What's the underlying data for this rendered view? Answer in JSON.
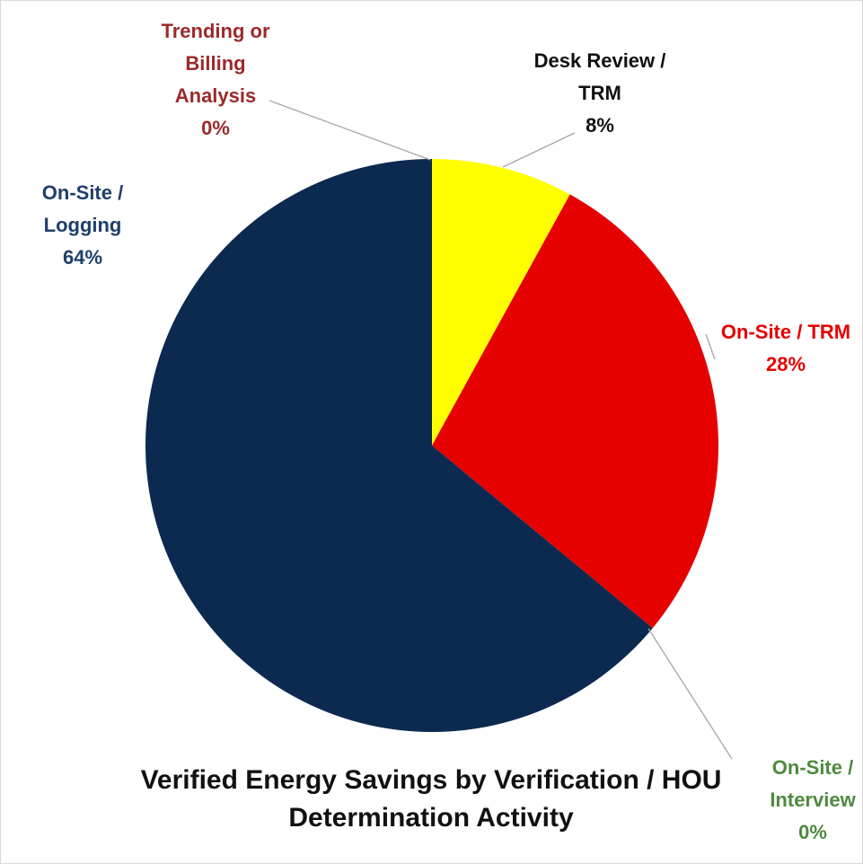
{
  "chart_data": {
    "type": "pie",
    "title": "Verified Energy Savings by Verification / HOU Determination Activity",
    "categories": [
      "Desk Review / TRM",
      "On-Site / TRM",
      "On-Site / Interview",
      "On-Site / Logging",
      "Trending or Billing Analysis"
    ],
    "values": [
      8,
      28,
      0,
      64,
      0
    ],
    "value_labels": [
      "8%",
      "28%",
      "0%",
      "64%",
      "0%"
    ],
    "colors": [
      "#ffff00",
      "#e60000",
      "#4e8a3e",
      "#0c2a50",
      "#9b2a2a"
    ],
    "label_colors": [
      "#111111",
      "#e60000",
      "#4e8a3e",
      "#1f3f6a",
      "#9b2a2a"
    ]
  }
}
